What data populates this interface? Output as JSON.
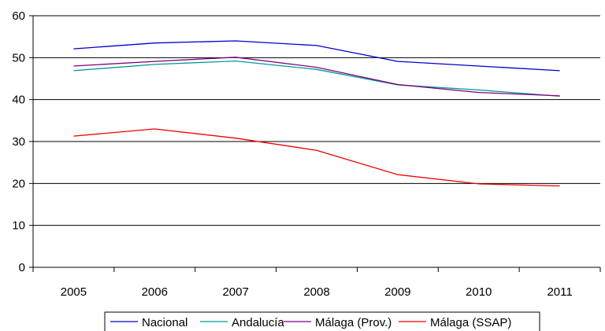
{
  "chart_data": {
    "type": "line",
    "title": "",
    "xlabel": "",
    "ylabel": "",
    "categories": [
      "2005",
      "2006",
      "2007",
      "2008",
      "2009",
      "2010",
      "2011"
    ],
    "ylim": [
      0,
      60
    ],
    "yticks": [
      "0",
      "10",
      "20",
      "30",
      "40",
      "50",
      "60"
    ],
    "grid": "horizontal",
    "legend_position": "bottom",
    "series": [
      {
        "name": "Nacional",
        "color": "#0000cc",
        "values": [
          52.1,
          53.5,
          54.0,
          52.9,
          49.1,
          48.0,
          46.9
        ]
      },
      {
        "name": "Andalucía",
        "color": "#009999",
        "values": [
          46.9,
          48.4,
          49.2,
          47.2,
          43.5,
          42.3,
          40.8
        ]
      },
      {
        "name": "Málaga (Prov.)",
        "color": "#800080",
        "values": [
          48.0,
          49.1,
          50.1,
          47.7,
          43.6,
          41.7,
          40.9
        ]
      },
      {
        "name": "Málaga (SSAP)",
        "color": "#ee0000",
        "values": [
          31.3,
          33.0,
          30.8,
          27.9,
          22.1,
          19.9,
          19.4
        ]
      }
    ]
  }
}
